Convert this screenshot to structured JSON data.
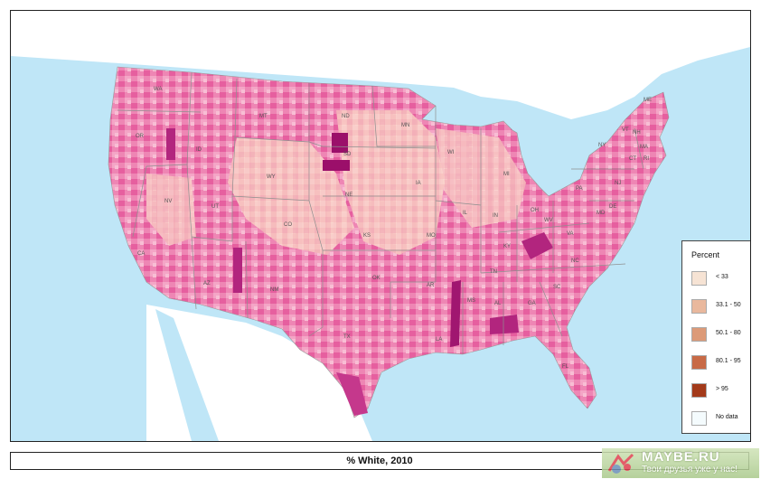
{
  "title": "% White, 2010",
  "legend": {
    "title": "Percent",
    "items": [
      {
        "label": "< 33",
        "color": "#f6e3d4"
      },
      {
        "label": "33.1 - 50",
        "color": "#e9b89d"
      },
      {
        "label": "50.1 - 80",
        "color": "#dc9a78"
      },
      {
        "label": "80.1 - 95",
        "color": "#c86a46"
      },
      {
        "label": "> 95",
        "color": "#a33a1a"
      },
      {
        "label": "No data",
        "color": "#f4fbfd"
      }
    ]
  },
  "state_labels": [
    "WA",
    "OR",
    "ID",
    "MT",
    "WY",
    "NV",
    "UT",
    "CO",
    "CA",
    "AZ",
    "NM",
    "ND",
    "SD",
    "NE",
    "KS",
    "OK",
    "TX",
    "MN",
    "IA",
    "MO",
    "AR",
    "LA",
    "WI",
    "IL",
    "MI",
    "IN",
    "OH",
    "KY",
    "TN",
    "MS",
    "AL",
    "GA",
    "FL",
    "SC",
    "NC",
    "VA",
    "WV",
    "PA",
    "NY",
    "VT",
    "NH",
    "ME",
    "MA",
    "CT",
    "RI",
    "NJ",
    "DE",
    "MD"
  ],
  "watermark": {
    "name": "MAYBE.RU",
    "tagline": "Твои друзья уже у нас!"
  }
}
